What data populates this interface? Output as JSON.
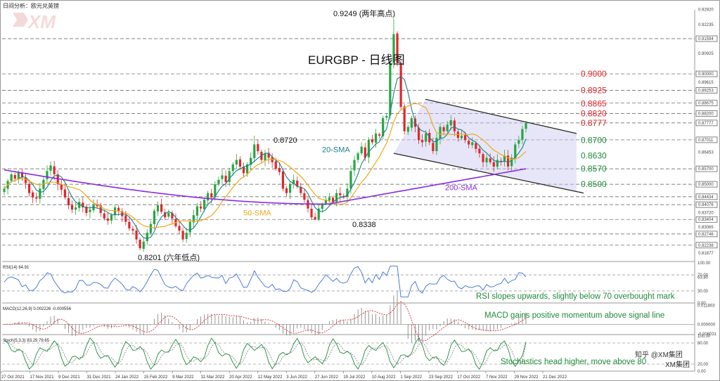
{
  "header": {
    "caption": "日间分析：欧元兑英镑"
  },
  "brand": {
    "watermark": "XM",
    "footer_logo": "XM集团",
    "footer_tag": "知乎 @XM集团"
  },
  "chart_data": {
    "type": "candlestick",
    "title": "EURGBP - 日线图",
    "price_axis": {
      "ylim": [
        0.815,
        0.929
      ],
      "tick_labels": [
        "0.92920",
        "0.92235",
        "0.91594",
        "0.90925",
        "0.90000",
        "0.89615",
        "0.89253",
        "0.88675",
        "0.88200",
        "0.87777",
        "0.87011",
        "0.86453",
        "0.85700",
        "0.85000",
        "0.84434",
        "0.84076",
        "0.83720",
        "0.83404",
        "0.83065",
        "0.82746",
        "0.82238",
        "0.81877"
      ],
      "highlight_labels": [
        "0.91594",
        "0.90000",
        "0.89253",
        "0.88675",
        "0.88200",
        "0.87777",
        "0.87011",
        "0.85700",
        "0.85000",
        "0.84434",
        "0.84076",
        "0.83404",
        "0.82746",
        "0.82238"
      ]
    },
    "dashed_levels": [
      0.91594,
      0.9,
      0.89253,
      0.88675,
      0.882,
      0.87777,
      0.87011,
      0.857,
      0.85,
      0.84434,
      0.84076,
      0.83404,
      0.82746,
      0.82238
    ],
    "level_labels_red": [
      "0.9000",
      "0.8925",
      "0.8865",
      "0.8820",
      "0.8777"
    ],
    "level_labels_green": [
      "0.8700",
      "0.8630",
      "0.8570",
      "0.8500"
    ],
    "level_values_red": [
      0.9,
      0.8925,
      0.8865,
      0.882,
      0.8777
    ],
    "level_values_green": [
      0.87,
      0.863,
      0.857,
      0.85
    ],
    "annotations": [
      {
        "text": "0.9249 (两年高点)",
        "value": 0.9249
      },
      {
        "text": "0.8720",
        "value": 0.872
      },
      {
        "text": "0.8338",
        "value": 0.8338
      },
      {
        "text": "0.8201 (六年低点)",
        "value": 0.8201
      }
    ],
    "sma_labels": {
      "sma20": "20-SMA",
      "sma50": "50-SMA",
      "sma200": "200-SMA"
    },
    "closes": [
      0.848,
      0.8515,
      0.8545,
      0.8525,
      0.8555,
      0.853,
      0.8505,
      0.846,
      0.844,
      0.8435,
      0.848,
      0.852,
      0.856,
      0.8585,
      0.8545,
      0.85,
      0.8475,
      0.844,
      0.8405,
      0.8385,
      0.8395,
      0.842,
      0.8395,
      0.837,
      0.8385,
      0.841,
      0.84,
      0.837,
      0.8345,
      0.8335,
      0.836,
      0.8395,
      0.838,
      0.8355,
      0.833,
      0.83,
      0.829,
      0.825,
      0.821,
      0.824,
      0.828,
      0.832,
      0.838,
      0.8405,
      0.8375,
      0.835,
      0.837,
      0.8345,
      0.831,
      0.829,
      0.825,
      0.828,
      0.833,
      0.836,
      0.84,
      0.839,
      0.843,
      0.846,
      0.844,
      0.85,
      0.852,
      0.854,
      0.851,
      0.856,
      0.859,
      0.861,
      0.858,
      0.855,
      0.859,
      0.862,
      0.868,
      0.865,
      0.861,
      0.864,
      0.862,
      0.86,
      0.857,
      0.8555,
      0.848,
      0.846,
      0.85,
      0.852,
      0.849,
      0.846,
      0.843,
      0.839,
      0.835,
      0.834,
      0.839,
      0.841,
      0.843,
      0.844,
      0.842,
      0.846,
      0.845,
      0.844,
      0.848,
      0.856,
      0.861,
      0.864,
      0.867,
      0.862,
      0.87,
      0.869,
      0.873,
      0.872,
      0.88,
      0.881,
      0.905,
      0.918,
      0.905,
      0.885,
      0.874,
      0.876,
      0.88,
      0.876,
      0.87,
      0.869,
      0.873,
      0.869,
      0.865,
      0.871,
      0.876,
      0.874,
      0.877,
      0.879,
      0.874,
      0.871,
      0.872,
      0.87,
      0.868,
      0.869,
      0.866,
      0.864,
      0.86,
      0.862,
      0.86,
      0.858,
      0.861,
      0.86,
      0.863,
      0.858,
      0.862,
      0.868,
      0.87,
      0.875,
      0.8777
    ],
    "indicators": [
      {
        "name": "RSI(14) 64.91",
        "note": "RSI slopes upwards, slightly below 70 overbought mark",
        "ticks": [
          "100.00",
          "70.00",
          "63.80",
          "30.00",
          "0.00"
        ],
        "ylim": [
          0,
          100
        ]
      },
      {
        "name": "MACD(12,26,9) 0.002226 -0.000556",
        "note": "MACD gains positive momentum above signal line",
        "ticks": [
          "0.011803",
          "0.000000",
          "-0.006031"
        ],
        "ylim": [
          -0.0065,
          0.0125
        ]
      },
      {
        "name": "Stoch(5,3,3) 83.29 79.65",
        "note": "Stochastics head higher, move above 80",
        "ticks": [
          "100.00",
          "80.00",
          "20.00",
          "0.00"
        ],
        "ylim": [
          0,
          100
        ]
      }
    ],
    "x_labels": [
      "27 Oct 2021",
      "17 Nov 2021",
      "9 Dec 2021",
      "31 Dec 2021",
      "24 Jan 2022",
      "15 Feb 2022",
      "9 Mar 2022",
      "31 Mar 2022",
      "20 Apr 2022",
      "12 May 2022",
      "3 Jun 2022",
      "27 Jun 2022",
      "19 Jul 2022",
      "10 Aug 2022",
      "1 Sep 2022",
      "23 Sep 2022",
      "17 Oct 2022",
      "7 Nov 2022",
      "29 Nov 2022",
      "21 Dec 2022"
    ],
    "colors": {
      "up": "#27a642",
      "down": "#e0262b",
      "sma20": "#1a7f8a",
      "sma50": "#f2a71b",
      "sma200": "#8a2be2",
      "channel": "#c8c8ef",
      "level_red": "#e0262b",
      "level_green": "#1f8b3a"
    }
  }
}
